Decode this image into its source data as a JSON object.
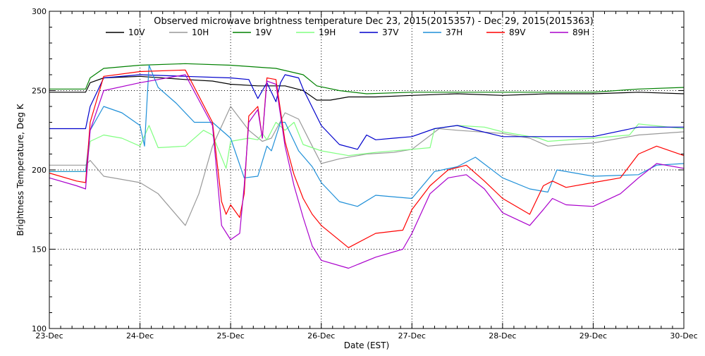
{
  "chart_data": {
    "type": "line",
    "title": "Observed microwave brightness temperature Dec 23, 2015(2015357) - Dec 29, 2015(2015363)",
    "xlabel": "Date (EST)",
    "ylabel": "Brightness Temperature, Deg K",
    "xlim": [
      0,
      7
    ],
    "ylim": [
      100,
      300
    ],
    "x_unit": "days since 23-Dec 00:00 EST",
    "categories": [
      "23-Dec",
      "24-Dec",
      "25-Dec",
      "26-Dec",
      "27-Dec",
      "28-Dec",
      "29-Dec",
      "30-Dec"
    ],
    "y_ticks": [
      100,
      150,
      200,
      250,
      300
    ],
    "y_gridlines": [
      150,
      200,
      250
    ],
    "x_gridlines": [
      1,
      2,
      3,
      4,
      5,
      6
    ],
    "grid": true,
    "grid_style": "dotted",
    "legend_position": "top",
    "series": [
      {
        "name": "10V",
        "color": "#000000",
        "x": [
          0,
          0.4,
          0.45,
          0.6,
          1.0,
          1.5,
          1.8,
          2.0,
          2.3,
          2.6,
          2.8,
          2.95,
          3.1,
          3.3,
          3.6,
          4.0,
          4.5,
          5.0,
          5.5,
          6.0,
          6.5,
          7.0
        ],
        "y": [
          249,
          249,
          255,
          258,
          259,
          257,
          256,
          254,
          253,
          253,
          250,
          244,
          244,
          246,
          246,
          247,
          248,
          247,
          248,
          248,
          249,
          248
        ]
      },
      {
        "name": "10H",
        "color": "#999999",
        "x": [
          0,
          0.4,
          0.45,
          0.6,
          0.8,
          1.0,
          1.2,
          1.5,
          1.65,
          1.8,
          2.0,
          2.2,
          2.35,
          2.45,
          2.6,
          2.75,
          2.9,
          3.0,
          3.2,
          3.5,
          3.8,
          4.0,
          4.3,
          4.5,
          5.0,
          5.3,
          5.5,
          5.7,
          6.0,
          6.5,
          7.0
        ],
        "y": [
          203,
          203,
          206,
          196,
          194,
          192,
          185,
          165,
          185,
          215,
          240,
          225,
          218,
          220,
          236,
          232,
          215,
          204,
          207,
          210,
          211,
          213,
          226,
          225,
          223,
          220,
          215,
          216,
          217,
          222,
          224
        ]
      },
      {
        "name": "19V",
        "color": "#008000",
        "x": [
          0,
          0.4,
          0.45,
          0.6,
          1.0,
          1.5,
          2.0,
          2.5,
          2.8,
          2.95,
          3.2,
          3.5,
          4.0,
          4.5,
          5.0,
          5.5,
          6.0,
          6.5,
          7.0
        ],
        "y": [
          251,
          251,
          258,
          264,
          266,
          267,
          266,
          264,
          260,
          253,
          250,
          248,
          249,
          249,
          249,
          249,
          249,
          251,
          252
        ]
      },
      {
        "name": "19H",
        "color": "#80ff80",
        "x": [
          0,
          0.4,
          0.45,
          0.6,
          0.8,
          1.0,
          1.1,
          1.2,
          1.5,
          1.7,
          1.8,
          1.95,
          2.0,
          2.2,
          2.3,
          2.35,
          2.4,
          2.5,
          2.6,
          2.7,
          2.8,
          3.0,
          3.3,
          3.6,
          4.0,
          4.2,
          4.25,
          4.5,
          4.8,
          5.0,
          5.2,
          5.4,
          5.5,
          6.0,
          6.4,
          6.5,
          7.0
        ],
        "y": [
          199,
          199,
          218,
          222,
          220,
          215,
          228,
          214,
          215,
          225,
          222,
          201,
          218,
          220,
          219,
          223,
          219,
          230,
          225,
          230,
          216,
          212,
          209,
          211,
          213,
          214,
          226,
          228,
          227,
          224,
          222,
          220,
          218,
          220,
          222,
          229,
          226
        ]
      },
      {
        "name": "37V",
        "color": "#0000cc",
        "x": [
          0,
          0.4,
          0.45,
          0.6,
          1.0,
          1.5,
          2.0,
          2.2,
          2.3,
          2.4,
          2.5,
          2.55,
          2.6,
          2.75,
          2.8,
          3.0,
          3.2,
          3.4,
          3.5,
          3.6,
          3.8,
          4.0,
          4.25,
          4.5,
          5.0,
          5.5,
          6.0,
          6.5,
          7.0
        ],
        "y": [
          226,
          226,
          240,
          258,
          260,
          259,
          258,
          257,
          245,
          255,
          243,
          255,
          260,
          258,
          251,
          228,
          216,
          213,
          222,
          219,
          220,
          221,
          226,
          228,
          221,
          221,
          221,
          227,
          227
        ]
      },
      {
        "name": "37H",
        "color": "#1e8fd8",
        "x": [
          0,
          0.4,
          0.45,
          0.6,
          0.8,
          1.0,
          1.05,
          1.1,
          1.2,
          1.4,
          1.6,
          1.8,
          2.0,
          2.15,
          2.3,
          2.4,
          2.45,
          2.55,
          2.6,
          2.75,
          2.9,
          3.0,
          3.2,
          3.4,
          3.6,
          4.0,
          4.25,
          4.5,
          4.7,
          5.0,
          5.3,
          5.5,
          5.6,
          6.0,
          6.5,
          6.7,
          7.0
        ],
        "y": [
          199,
          199,
          225,
          240,
          236,
          228,
          215,
          266,
          252,
          242,
          230,
          230,
          220,
          195,
          196,
          215,
          212,
          230,
          230,
          212,
          202,
          192,
          180,
          177,
          184,
          182,
          199,
          202,
          208,
          195,
          188,
          186,
          200,
          196,
          197,
          203,
          204
        ]
      },
      {
        "name": "89V",
        "color": "#ff0000",
        "x": [
          0,
          0.3,
          0.4,
          0.45,
          0.6,
          1.0,
          1.5,
          1.8,
          1.9,
          1.95,
          2.0,
          2.1,
          2.15,
          2.2,
          2.3,
          2.35,
          2.4,
          2.5,
          2.6,
          2.7,
          2.8,
          2.9,
          3.0,
          3.3,
          3.6,
          3.9,
          4.0,
          4.2,
          4.4,
          4.6,
          4.8,
          5.0,
          5.3,
          5.45,
          5.55,
          5.7,
          6.0,
          6.3,
          6.5,
          6.7,
          7.0
        ],
        "y": [
          198,
          193,
          192,
          230,
          259,
          262,
          263,
          230,
          180,
          172,
          178,
          170,
          185,
          234,
          240,
          220,
          258,
          257,
          218,
          197,
          182,
          172,
          165,
          151,
          160,
          162,
          175,
          190,
          200,
          203,
          193,
          182,
          172,
          190,
          193,
          189,
          192,
          195,
          210,
          215,
          209
        ]
      },
      {
        "name": "89H",
        "color": "#aa00cc",
        "x": [
          0,
          0.3,
          0.4,
          0.45,
          0.6,
          1.0,
          1.5,
          1.8,
          1.9,
          2.0,
          2.1,
          2.15,
          2.2,
          2.3,
          2.35,
          2.4,
          2.5,
          2.6,
          2.7,
          2.8,
          2.9,
          3.0,
          3.3,
          3.6,
          3.9,
          4.0,
          4.2,
          4.4,
          4.6,
          4.8,
          5.0,
          5.3,
          5.45,
          5.55,
          5.7,
          6.0,
          6.3,
          6.5,
          6.7,
          7.0
        ],
        "y": [
          195,
          190,
          188,
          225,
          250,
          255,
          260,
          228,
          165,
          156,
          160,
          190,
          230,
          238,
          220,
          256,
          254,
          215,
          190,
          170,
          152,
          143,
          138,
          145,
          150,
          160,
          185,
          195,
          197,
          188,
          173,
          165,
          175,
          182,
          178,
          177,
          185,
          195,
          204,
          201
        ]
      }
    ]
  }
}
